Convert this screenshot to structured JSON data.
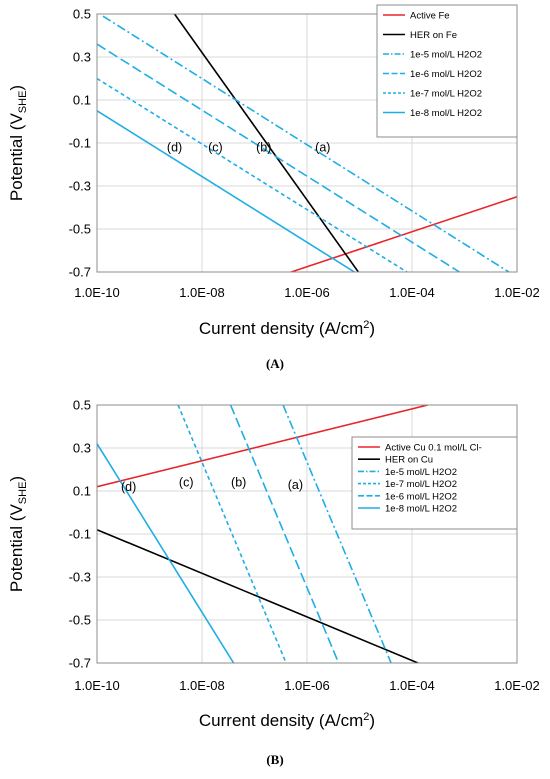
{
  "colors": {
    "red": "#e8252b",
    "black": "#000000",
    "blue": "#1eaee6"
  },
  "chart_data": [
    {
      "panel": "(A)",
      "type": "line",
      "xlabel_main": "Current density (A/cm",
      "xlabel_sup": "2",
      "xlabel_tail": ")",
      "ylabel_main": "Potential (V",
      "ylabel_sub": "SHE",
      "ylabel_tail": ")",
      "x_scale": "log",
      "xlim": [
        1e-10,
        0.01
      ],
      "ylim": [
        -0.7,
        0.5
      ],
      "x_ticks": [
        "1.0E-10",
        "1.0E-08",
        "1.0E-06",
        "1.0E-04",
        "1.0E-02"
      ],
      "y_ticks": [
        "0.5",
        "0.3",
        "0.1",
        "-0.1",
        "-0.3",
        "-0.5",
        "-0.7"
      ],
      "grid": true,
      "legend_position": "top-right",
      "series": [
        {
          "name": "Active Fe",
          "color": "red",
          "dash": "solid",
          "points": [
            [
              5e-07,
              -0.7
            ],
            [
              0.01,
              -0.35
            ]
          ]
        },
        {
          "name": "HER on Fe",
          "color": "black",
          "dash": "solid",
          "points": [
            [
              3e-09,
              0.5
            ],
            [
              9.5e-06,
              -0.7
            ]
          ]
        },
        {
          "name": "1e-5 mol/L H2O2",
          "color": "blue",
          "dash": "dashdot",
          "points": [
            [
              1.3e-10,
              0.49
            ],
            [
              0.007,
              -0.7
            ]
          ]
        },
        {
          "name": "1e-6 mol/L H2O2",
          "color": "blue",
          "dash": "dash",
          "points": [
            [
              1e-10,
              0.36
            ],
            [
              0.0008,
              -0.7
            ]
          ]
        },
        {
          "name": "1e-7 mol/L H2O2",
          "color": "blue",
          "dash": "shortdash",
          "points": [
            [
              1e-10,
              0.2
            ],
            [
              8e-05,
              -0.7
            ]
          ]
        },
        {
          "name": "1e-8 mol/L H2O2",
          "color": "blue",
          "dash": "solid",
          "points": [
            [
              1e-10,
              0.05
            ],
            [
              8e-06,
              -0.7
            ]
          ]
        }
      ],
      "annotations": [
        {
          "text": "(d)",
          "x": 3e-09,
          "y": -0.14
        },
        {
          "text": "(c)",
          "x": 1.8e-08,
          "y": -0.14
        },
        {
          "text": "(b)",
          "x": 1.5e-07,
          "y": -0.14
        },
        {
          "text": "(a)",
          "x": 2e-06,
          "y": -0.14
        }
      ]
    },
    {
      "panel": "(B)",
      "type": "line",
      "xlabel_main": "Current density (A/cm",
      "xlabel_sup": "2",
      "xlabel_tail": ")",
      "ylabel_main": "Potential (V",
      "ylabel_sub": "SHE",
      "ylabel_tail": ")",
      "x_scale": "log",
      "xlim": [
        1e-10,
        0.01
      ],
      "ylim": [
        -0.7,
        0.5
      ],
      "x_ticks": [
        "1.0E-10",
        "1.0E-08",
        "1.0E-06",
        "1.0E-04",
        "1.0E-02"
      ],
      "y_ticks": [
        "0.5",
        "0.3",
        "0.1",
        "-0.1",
        "-0.3",
        "-0.5",
        "-0.7"
      ],
      "grid": true,
      "legend_position": "right",
      "series": [
        {
          "name": "Active Cu 0.1 mol/L Cl-",
          "color": "red",
          "dash": "solid",
          "points": [
            [
              1e-10,
              0.12
            ],
            [
              0.0002,
              0.5
            ]
          ]
        },
        {
          "name": "HER on Cu",
          "color": "black",
          "dash": "solid",
          "points": [
            [
              1e-10,
              -0.08
            ],
            [
              0.00013,
              -0.7
            ]
          ]
        },
        {
          "name": "1e-5 mol/L H2O2",
          "color": "blue",
          "dash": "dashdot",
          "points": [
            [
              3.5e-07,
              0.5
            ],
            [
              4e-05,
              -0.7
            ]
          ]
        },
        {
          "name": "1e-7 mol/L H2O2",
          "color": "blue",
          "dash": "shortdash",
          "points": [
            [
              3.5e-09,
              0.5
            ],
            [
              4e-07,
              -0.7
            ]
          ]
        },
        {
          "name": "1e-6 mol/L H2O2",
          "color": "blue",
          "dash": "dash",
          "points": [
            [
              3.5e-08,
              0.5
            ],
            [
              4e-06,
              -0.7
            ]
          ]
        },
        {
          "name": "1e-8 mol/L H2O2",
          "color": "blue",
          "dash": "solid",
          "points": [
            [
              1e-10,
              0.32
            ],
            [
              4e-08,
              -0.7
            ]
          ]
        }
      ],
      "annotations": [
        {
          "text": "(d)",
          "x": 4e-10,
          "y": 0.1
        },
        {
          "text": "(c)",
          "x": 5e-09,
          "y": 0.12
        },
        {
          "text": "(b)",
          "x": 5e-08,
          "y": 0.12
        },
        {
          "text": "(a)",
          "x": 6e-07,
          "y": 0.11
        }
      ]
    }
  ]
}
